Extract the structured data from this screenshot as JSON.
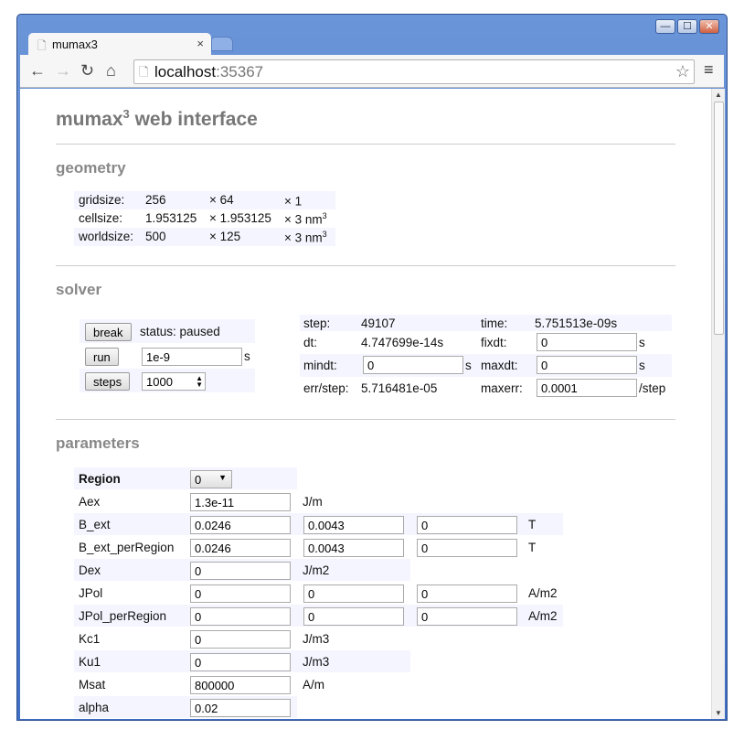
{
  "browser": {
    "tab_title": "mumax3",
    "url_host": "localhost",
    "url_port": ":35367"
  },
  "page": {
    "title": "mumax",
    "title_sup": "3",
    "title_rest": " web interface"
  },
  "geometry": {
    "heading": "geometry",
    "rows": [
      {
        "label": "gridsize:",
        "x": "256",
        "y": "× 64",
        "z": "× 1",
        "unit": "",
        "sup": ""
      },
      {
        "label": "cellsize:",
        "x": "1.953125",
        "y": "× 1.953125",
        "z": "× 3",
        "unit": " nm",
        "sup": "3"
      },
      {
        "label": "worldsize:",
        "x": "500",
        "y": "× 125",
        "z": "× 3",
        "unit": " nm",
        "sup": "3"
      }
    ]
  },
  "solver": {
    "heading": "solver",
    "break_label": "break",
    "status": "status: paused",
    "run_label": "run",
    "run_value": "1e-9",
    "run_unit": "s",
    "steps_label": "steps",
    "steps_value": "1000",
    "step_label": "step:",
    "step": "49107",
    "time_label": "time:",
    "time": "5.751513e-09s",
    "dt_label": "dt:",
    "dt": "4.747699e-14s",
    "fixdt_label": "fixdt:",
    "fixdt": "0",
    "fixdt_unit": "s",
    "mindt_label": "mindt:",
    "mindt": "0",
    "mindt_unit": "s",
    "maxdt_label": "maxdt:",
    "maxdt": "0",
    "maxdt_unit": "s",
    "errstep_label": "err/step:",
    "errstep": "5.716481e-05",
    "maxerr_label": "maxerr:",
    "maxerr": "0.0001",
    "maxerr_unit": "/step"
  },
  "parameters": {
    "heading": "parameters",
    "region_label": "Region",
    "region_value": "0",
    "rows": [
      {
        "name": "Aex",
        "v": [
          "1.3e-11"
        ],
        "unit": "J/m"
      },
      {
        "name": "B_ext",
        "v": [
          "0.0246",
          "0.0043",
          "0"
        ],
        "unit": "T"
      },
      {
        "name": "B_ext_perRegion",
        "v": [
          "0.0246",
          "0.0043",
          "0"
        ],
        "unit": "T"
      },
      {
        "name": "Dex",
        "v": [
          "0"
        ],
        "unit": "J/m2"
      },
      {
        "name": "JPol",
        "v": [
          "0",
          "0",
          "0"
        ],
        "unit": "A/m2"
      },
      {
        "name": "JPol_perRegion",
        "v": [
          "0",
          "0",
          "0"
        ],
        "unit": "A/m2"
      },
      {
        "name": "Kc1",
        "v": [
          "0"
        ],
        "unit": "J/m3"
      },
      {
        "name": "Ku1",
        "v": [
          "0"
        ],
        "unit": "J/m3"
      },
      {
        "name": "Msat",
        "v": [
          "800000"
        ],
        "unit": "A/m"
      },
      {
        "name": "alpha",
        "v": [
          "0.02"
        ],
        "unit": ""
      }
    ]
  }
}
